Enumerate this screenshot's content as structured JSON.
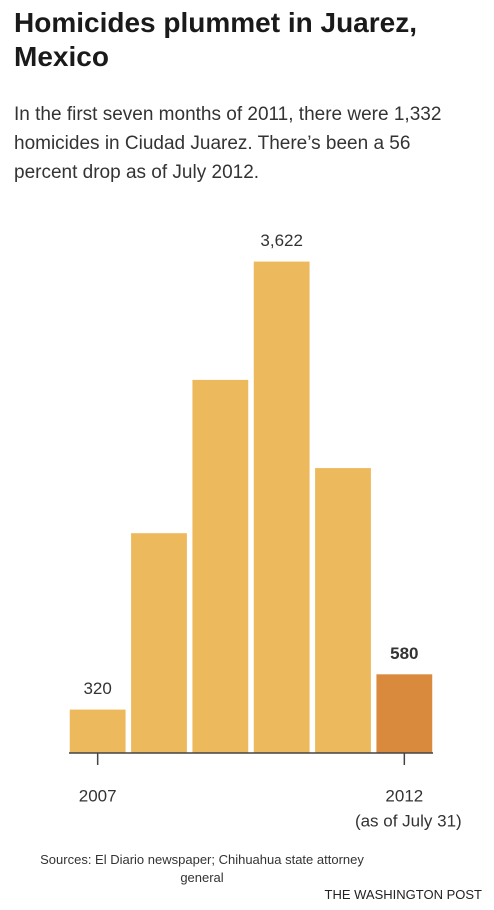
{
  "chart_data": {
    "type": "bar",
    "title": "Homicides plummet in Juarez, Mexico",
    "subtitle": "In the first seven months of 2011, there were 1,332 homicides in Ciudad Juarez. There’s been a 56 percent drop as of July 2012.",
    "categories": [
      "2007",
      null,
      null,
      null,
      null,
      "2012"
    ],
    "category_note": "(as of July 31)",
    "values": [
      320,
      1620,
      2750,
      3622,
      2100,
      580
    ],
    "value_labels": [
      "320",
      null,
      null,
      "3,622",
      null,
      "580"
    ],
    "colors": [
      "#ecb95c",
      "#ecb95c",
      "#ecb95c",
      "#ecb95c",
      "#ecb95c",
      "#d98a3c"
    ],
    "ylim": [
      0,
      3700
    ],
    "sources": "Sources: El Diario newspaper; Chihuahua state attorney general",
    "credit": "THE WASHINGTON POST"
  }
}
